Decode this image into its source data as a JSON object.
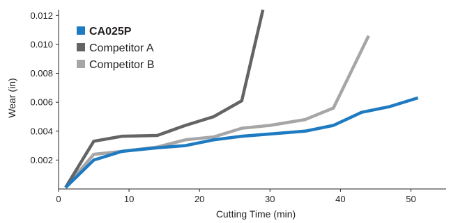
{
  "chart_data": {
    "type": "line",
    "title": "",
    "xlabel": "Cutting Time (min)",
    "ylabel": "Wear (in)",
    "xlim": [
      0,
      55
    ],
    "ylim": [
      0,
      0.0124
    ],
    "x_ticks": [
      0,
      10,
      20,
      30,
      40,
      50
    ],
    "x_tick_labels": [
      "0",
      "10",
      "20",
      "30",
      "40",
      "50"
    ],
    "y_ticks": [
      0.002,
      0.004,
      0.006,
      0.008,
      0.01,
      0.012
    ],
    "y_tick_labels": [
      "0.002",
      "0.004",
      "0.006",
      "0.008",
      "0.010",
      "0.012"
    ],
    "grid": false,
    "legend_position": "top-left",
    "series": [
      {
        "name": "CA025P",
        "color": "#1f7bc1",
        "bold_label": true,
        "x": [
          1,
          5,
          9,
          14,
          18,
          22,
          26,
          30,
          35,
          39,
          43,
          47,
          51
        ],
        "y": [
          0.0001,
          0.002,
          0.0026,
          0.00285,
          0.003,
          0.0034,
          0.00365,
          0.0038,
          0.004,
          0.0044,
          0.0053,
          0.0057,
          0.0063
        ]
      },
      {
        "name": "Competitor A",
        "color": "#636466",
        "bold_label": false,
        "x": [
          1,
          5,
          9,
          14,
          18,
          22,
          26,
          29
        ],
        "y": [
          0.0001,
          0.0033,
          0.00365,
          0.0037,
          0.0044,
          0.005,
          0.0061,
          0.0124
        ]
      },
      {
        "name": "Competitor B",
        "color": "#a6a6a8",
        "bold_label": false,
        "x": [
          1,
          5,
          9,
          14,
          18,
          22,
          26,
          30,
          35,
          39,
          44
        ],
        "y": [
          0.0001,
          0.0024,
          0.0026,
          0.0029,
          0.0034,
          0.0036,
          0.0042,
          0.0044,
          0.0048,
          0.0056,
          0.0106
        ]
      }
    ]
  }
}
